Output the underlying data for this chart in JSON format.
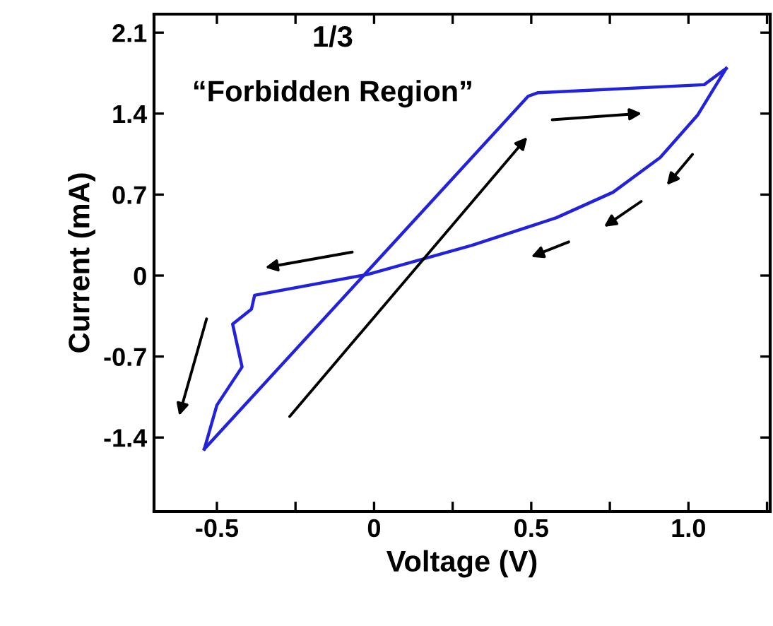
{
  "chart_data": {
    "type": "line",
    "xlabel": "Voltage (V)",
    "ylabel": "Current (mA)",
    "annotations": [
      "1/3",
      "“Forbidden Region”"
    ],
    "series": [
      {
        "color": "#2222dd",
        "x": [
          -0.54,
          0.49,
          0.52,
          1.05,
          1.12
        ],
        "values": [
          -1.5,
          1.55,
          1.58,
          1.65,
          1.79
        ]
      },
      {
        "color": "#2222dd",
        "x": [
          1.12,
          1.03,
          0.91,
          0.76,
          0.58,
          0.31,
          -0.02,
          -0.38,
          -0.39,
          -0.45,
          -0.42,
          -0.5,
          -0.54
        ],
        "values": [
          1.79,
          1.39,
          1.02,
          0.72,
          0.5,
          0.26,
          0.01,
          -0.17,
          -0.29,
          -0.42,
          -0.79,
          -1.12,
          -1.5
        ]
      }
    ],
    "xlim": [
      -0.7,
      1.26
    ],
    "ylim": [
      -2.04,
      2.26
    ],
    "xticks": [
      -0.5,
      {
        "value": -0.25,
        "label": null
      },
      0,
      {
        "value": 0.25,
        "label": null
      },
      0.5,
      {
        "value": 0.75,
        "label": null
      },
      {
        "value": 1.0,
        "label": "1.0"
      },
      {
        "value": 1.25,
        "label": null
      }
    ],
    "yticks": [
      -1.4,
      -0.7,
      0,
      0.7,
      1.4,
      2.1
    ],
    "grid": false,
    "legend": false,
    "marker": "none",
    "line_style": "solid"
  }
}
